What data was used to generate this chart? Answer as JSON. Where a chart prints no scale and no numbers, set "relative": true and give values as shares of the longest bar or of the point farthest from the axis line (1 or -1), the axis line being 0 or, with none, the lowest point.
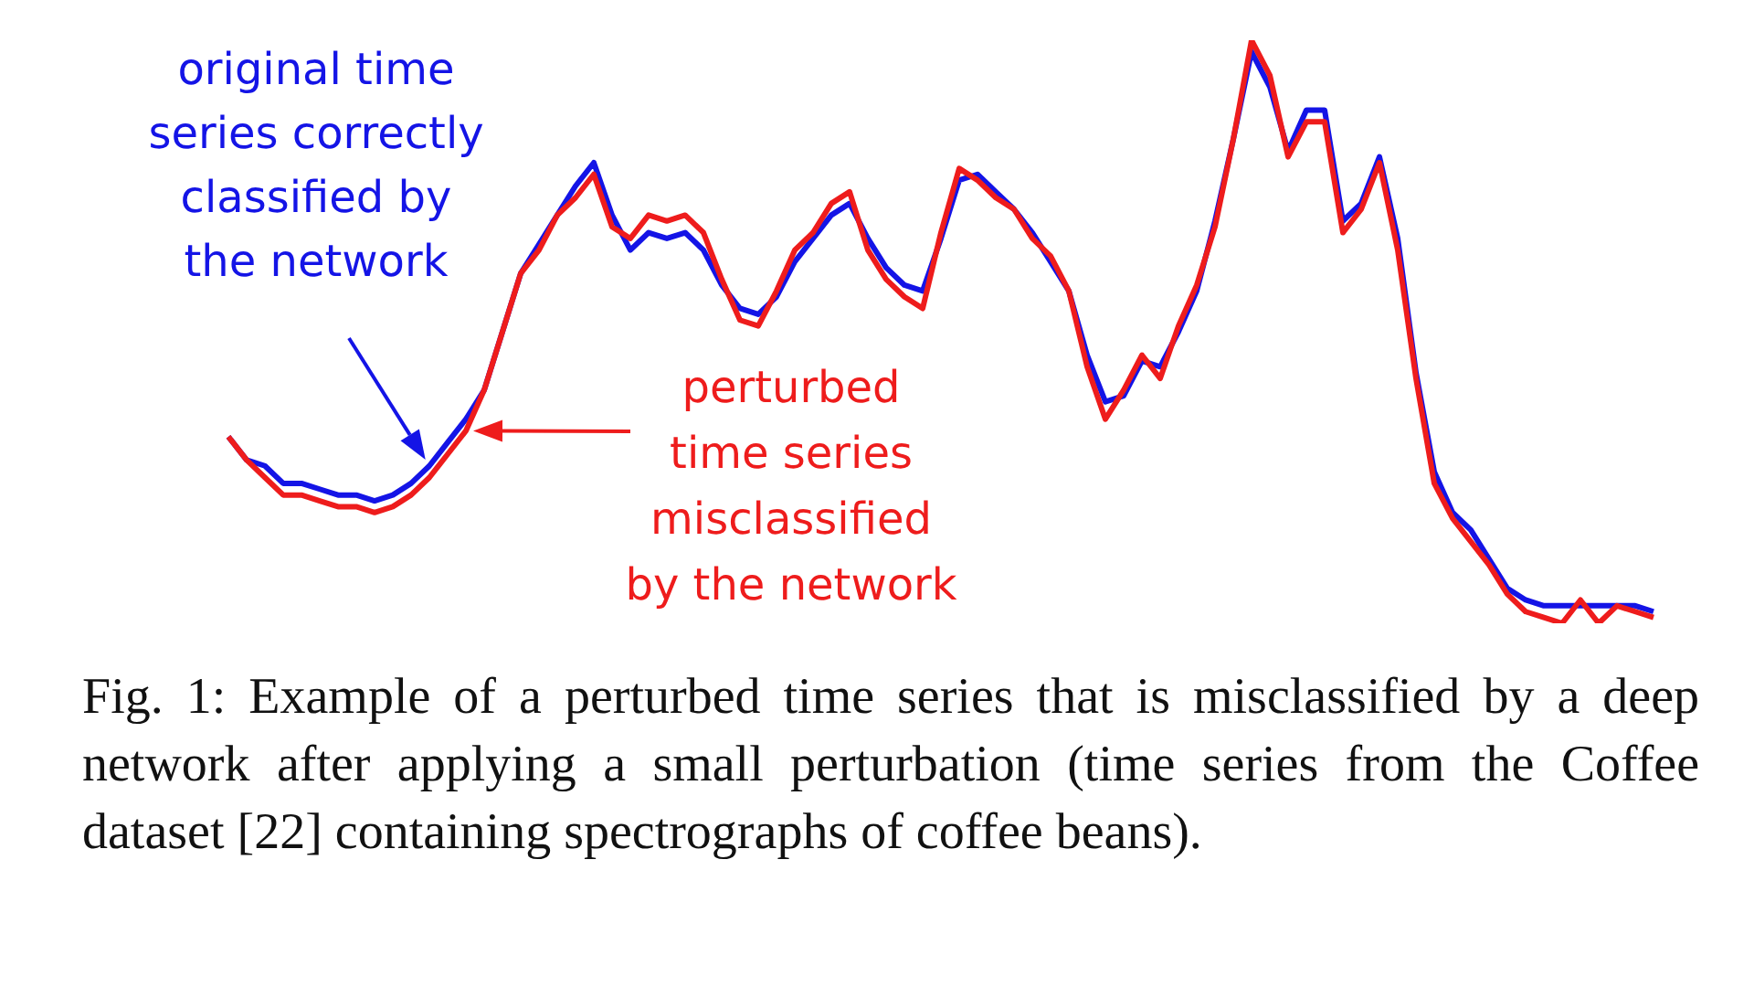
{
  "chart_data": {
    "type": "line",
    "relative": true,
    "legend": false,
    "marker": "none",
    "categories": [
      null,
      null,
      null,
      null,
      null,
      null,
      null,
      null,
      null,
      null,
      null,
      null,
      null,
      null,
      null,
      null,
      null,
      null,
      null,
      null,
      null,
      null,
      null,
      null,
      null,
      null,
      null,
      null,
      null,
      null,
      null,
      null,
      null,
      null,
      null,
      null,
      null,
      null,
      null,
      null,
      null,
      null,
      null,
      null,
      null,
      null,
      null,
      null,
      null,
      null,
      null,
      null,
      null,
      null,
      null,
      null,
      null,
      null,
      null,
      null,
      null,
      null,
      null,
      null,
      null,
      null,
      null,
      null,
      null,
      null,
      null,
      null,
      null,
      null,
      null,
      null,
      null,
      null,
      null
    ],
    "series": [
      {
        "color": "#1414e6",
        "values": [
          0.32,
          0.28,
          0.27,
          0.24,
          0.24,
          0.23,
          0.22,
          0.22,
          0.21,
          0.22,
          0.24,
          0.27,
          0.31,
          0.35,
          0.4,
          0.5,
          0.6,
          0.65,
          0.7,
          0.75,
          0.79,
          0.7,
          0.64,
          0.67,
          0.66,
          0.67,
          0.64,
          0.58,
          0.54,
          0.53,
          0.56,
          0.62,
          0.66,
          0.7,
          0.72,
          0.66,
          0.61,
          0.58,
          0.57,
          0.66,
          0.76,
          0.77,
          0.74,
          0.71,
          0.67,
          0.62,
          0.57,
          0.46,
          0.38,
          0.39,
          0.45,
          0.44,
          0.5,
          0.57,
          0.69,
          0.83,
          0.98,
          0.92,
          0.81,
          0.88,
          0.88,
          0.69,
          0.72,
          0.8,
          0.66,
          0.43,
          0.26,
          0.19,
          0.16,
          0.11,
          0.06,
          0.04,
          0.03,
          0.03,
          0.03,
          0.03,
          0.03,
          0.03,
          0.02
        ]
      },
      {
        "color": "#ee1c1c",
        "values": [
          0.32,
          0.28,
          0.25,
          0.22,
          0.22,
          0.21,
          0.2,
          0.2,
          0.19,
          0.2,
          0.22,
          0.25,
          0.29,
          0.33,
          0.4,
          0.5,
          0.6,
          0.64,
          0.7,
          0.73,
          0.77,
          0.68,
          0.66,
          0.7,
          0.69,
          0.7,
          0.67,
          0.59,
          0.52,
          0.51,
          0.57,
          0.64,
          0.67,
          0.72,
          0.74,
          0.64,
          0.59,
          0.56,
          0.54,
          0.67,
          0.78,
          0.76,
          0.73,
          0.71,
          0.66,
          0.63,
          0.57,
          0.44,
          0.35,
          0.4,
          0.46,
          0.42,
          0.51,
          0.58,
          0.68,
          0.83,
          1,
          0.94,
          0.8,
          0.86,
          0.86,
          0.67,
          0.71,
          0.79,
          0.64,
          0.42,
          0.24,
          0.18,
          0.14,
          0.1,
          0.05,
          0.02,
          0.01,
          0,
          0.04,
          0,
          0.03,
          0.02,
          0.01
        ]
      }
    ],
    "annotations": [
      "original time\nseries correctly\nclassified by\nthe network",
      "perturbed\ntime series\nmisclassified\nby the network",
      "Fig. 1: Example of a perturbed time series that is misclassified by a deep network after applying a small perturbation (time series from the Coffee dataset [22] containing spectrographs of coffee beans)."
    ]
  }
}
